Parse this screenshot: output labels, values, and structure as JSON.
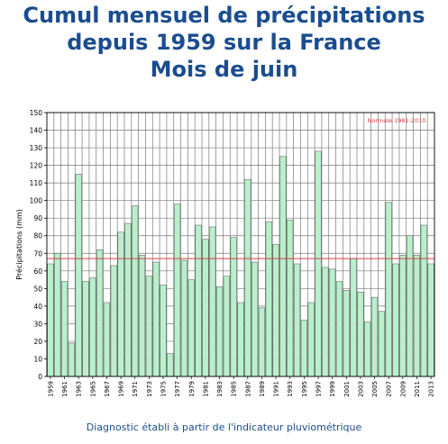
{
  "title_lines": [
    "Cumul mensuel de précipitations",
    "depuis 1959 sur la France",
    "Mois de juin"
  ],
  "caption": "Diagnostic établi à partir de l'indicateur pluviométrique",
  "colors": {
    "title": "#1a4d8f",
    "bar_fill": "#b8f0cc",
    "bar_stroke": "#555555",
    "normal_line": "#d94040",
    "grid": "#7a7a7a"
  },
  "chart_data": {
    "type": "bar",
    "ylabel": "Précipitations (mm)",
    "xlabel": "",
    "ylim": [
      0,
      150
    ],
    "yticks": [
      0,
      10,
      20,
      30,
      40,
      50,
      60,
      70,
      80,
      90,
      100,
      110,
      120,
      130,
      140,
      150
    ],
    "grid": true,
    "categories": [
      1959,
      1960,
      1961,
      1962,
      1963,
      1964,
      1965,
      1966,
      1967,
      1968,
      1969,
      1970,
      1971,
      1972,
      1973,
      1974,
      1975,
      1976,
      1977,
      1978,
      1979,
      1980,
      1981,
      1982,
      1983,
      1984,
      1985,
      1986,
      1987,
      1988,
      1989,
      1990,
      1991,
      1992,
      1993,
      1994,
      1995,
      1996,
      1997,
      1998,
      1999,
      2000,
      2001,
      2002,
      2003,
      2004,
      2005,
      2006,
      2007,
      2008,
      2009,
      2010,
      2011,
      2012,
      2013
    ],
    "xtick_labels": [
      "1959",
      "1961",
      "1963",
      "1965",
      "1967",
      "1969",
      "1971",
      "1973",
      "1975",
      "1977",
      "1979",
      "1981",
      "1983",
      "1985",
      "1987",
      "1989",
      "1991",
      "1993",
      "1995",
      "1997",
      "1999",
      "2001",
      "2003",
      "2005",
      "2007",
      "2009",
      "2011",
      "2013"
    ],
    "values": [
      64,
      70,
      54,
      19,
      115,
      54,
      56,
      72,
      42,
      63,
      82,
      87,
      97,
      69,
      57,
      65,
      52,
      13,
      98,
      66,
      55,
      86,
      78,
      85,
      51,
      57,
      79,
      42,
      112,
      65,
      39,
      88,
      75,
      125,
      89,
      64,
      32,
      42,
      128,
      62,
      61,
      54,
      49,
      67,
      48,
      31,
      45,
      37,
      99,
      64,
      69,
      80,
      69,
      86,
      64
    ],
    "reference_line": {
      "label": "Normale 1981-2010",
      "value": 67
    }
  }
}
